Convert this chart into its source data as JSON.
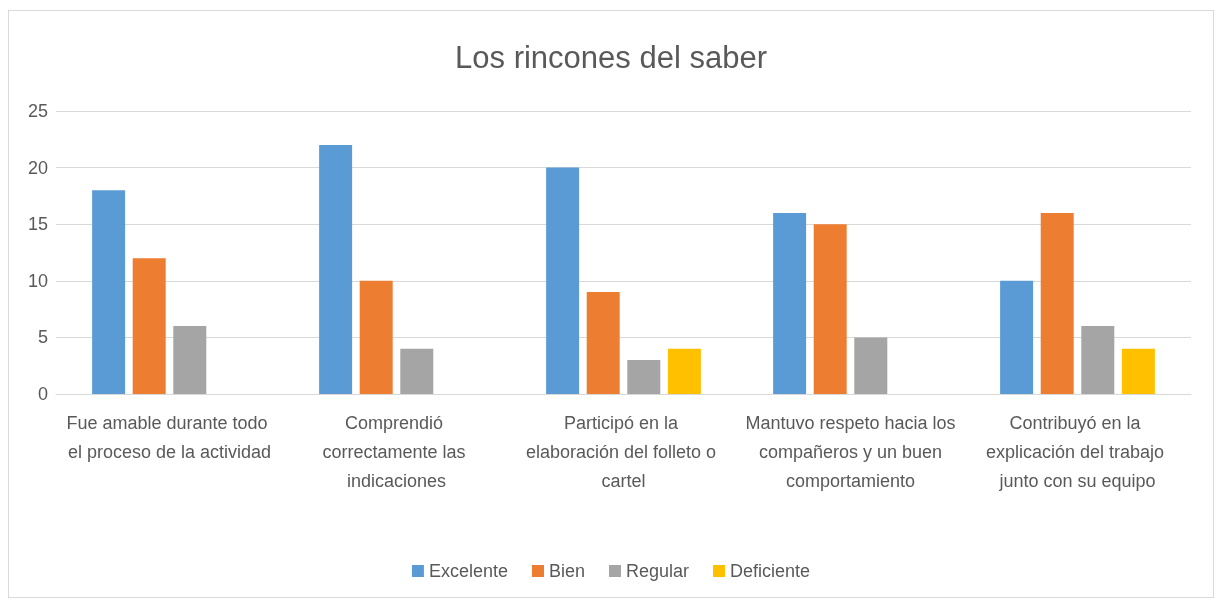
{
  "chart_data": {
    "type": "bar",
    "title": "Los rincones del saber",
    "categories": [
      "Fue amable durante todo el proceso de la actividad",
      "Comprendió correctamente las indicaciones",
      "Participó en la elaboración del folleto o cartel",
      "Mantuvo respeto hacia los compañeros y un buen comportamiento",
      "Contribuyó en la explicación del trabajo junto con su equipo"
    ],
    "series": [
      {
        "name": "Excelente",
        "color": "#5b9bd5",
        "values": [
          18,
          22,
          20,
          16,
          10
        ]
      },
      {
        "name": "Bien",
        "color": "#ed7d31",
        "values": [
          12,
          10,
          9,
          15,
          16
        ]
      },
      {
        "name": "Regular",
        "color": "#a5a5a5",
        "values": [
          6,
          4,
          3,
          5,
          6
        ]
      },
      {
        "name": "Deficiente",
        "color": "#ffc000",
        "values": [
          null,
          null,
          4,
          null,
          4
        ]
      }
    ],
    "ylim": [
      0,
      25
    ],
    "yticks": [
      0,
      5,
      10,
      15,
      20,
      25
    ],
    "grid": "y",
    "legend": "bottom"
  }
}
